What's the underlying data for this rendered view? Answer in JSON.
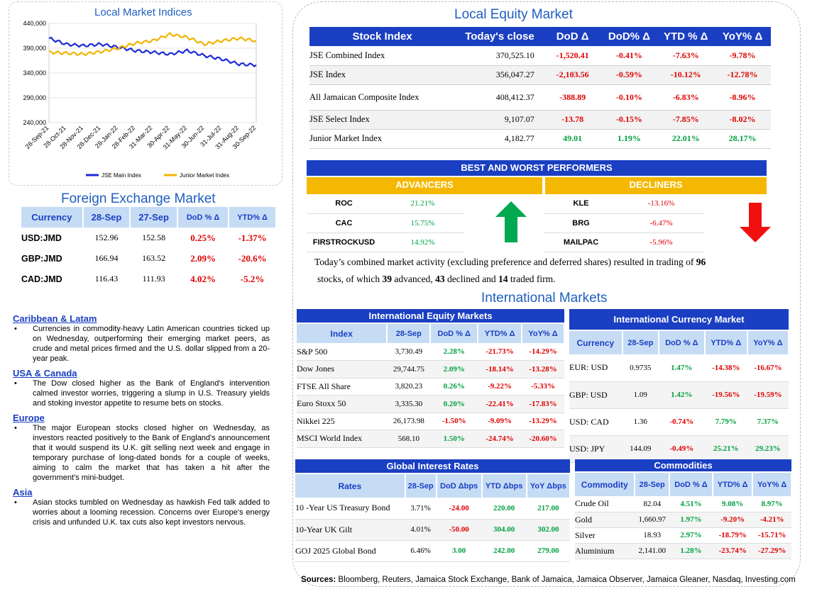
{
  "local_indices": {
    "title": "Local Market Indices",
    "y_ticks": [
      "440,000",
      "390,000",
      "340,000",
      "290,000",
      "240,000"
    ],
    "x_ticks": [
      "28-Sep-21",
      "28-Oct-21",
      "28-Nov-21",
      "28-Dec-21",
      "28-Jan-22",
      "28-Feb-22",
      "31-Mar-22",
      "30-Apr-22",
      "31-May-22",
      "30-Jun-22",
      "31-Jul-22",
      "31-Aug-22",
      "30-Sep-22"
    ],
    "legend": [
      "JSE Main Index",
      "Junior Market Index"
    ],
    "colors": {
      "main": "#1f2bd6",
      "junior": "#f0b400"
    }
  },
  "chart_data": {
    "type": "line",
    "title": "Local Market Indices",
    "categories": [
      "28-Sep-21",
      "28-Oct-21",
      "28-Nov-21",
      "28-Dec-21",
      "28-Jan-22",
      "28-Feb-22",
      "31-Mar-22",
      "30-Apr-22",
      "31-May-22",
      "30-Jun-22",
      "31-Jul-22",
      "31-Aug-22",
      "30-Sep-22"
    ],
    "series": [
      {
        "name": "JSE Main Index",
        "values": [
          410000,
          398000,
          395000,
          398000,
          392000,
          385000,
          382000,
          378000,
          385000,
          375000,
          368000,
          358000,
          356000
        ]
      },
      {
        "name": "Junior Market Index",
        "values": [
          382000,
          380000,
          378000,
          383000,
          390000,
          400000,
          405000,
          418000,
          412000,
          398000,
          405000,
          410000,
          405000
        ]
      }
    ],
    "ylim": [
      240000,
      440000
    ],
    "legend_position": "bottom"
  },
  "local_equity": {
    "title": "Local Equity Market",
    "headers": [
      "Stock Index",
      "Today's close",
      "DoD  Δ",
      "DoD% Δ",
      "YTD % Δ",
      "YoY% Δ"
    ],
    "rows": [
      [
        "JSE Combined Index",
        "370,525.10",
        "-1,520.41",
        "-0.41%",
        "-7.63%",
        "-9.78%"
      ],
      [
        "JSE Index",
        "356,047.27",
        "-2,103.56",
        "-0.59%",
        "-10.12%",
        "-12.78%"
      ],
      [
        "All Jamaican Composite Index",
        "408,412.37",
        "-388.89",
        "-0.10%",
        "-6.83%",
        "-8.96%"
      ],
      [
        "JSE Select Index",
        "9,107.07",
        "-13.78",
        "-0.15%",
        "-7.85%",
        "-8.02%"
      ],
      [
        "Junior Market Index",
        "4,182.77",
        "49.01",
        "1.19%",
        "22.01%",
        "28.17%"
      ]
    ]
  },
  "performers": {
    "title": "BEST AND WORST PERFORMERS",
    "advancers_label": "ADVANCERS",
    "decliners_label": "DECLINERS",
    "advancers": [
      [
        "ROC",
        "21.21%"
      ],
      [
        "CAC",
        "15.75%"
      ],
      [
        "FIRSTROCKUSD",
        "14.92%"
      ]
    ],
    "decliners": [
      [
        "KLE",
        "-13.16%"
      ],
      [
        "BRG",
        "-6.47%"
      ],
      [
        "MAILPAC",
        "-5.96%"
      ]
    ]
  },
  "summary": {
    "p1": "Today’s combined market activity (excluding preference and deferred shares) resulted in trading of ",
    "n1": "96",
    "p2": "stocks, of which ",
    "n2": "39",
    "p3": " advanced, ",
    "n3": "43",
    "p4": " declined and ",
    "n4": "14",
    "p5": " traded firm."
  },
  "fx": {
    "title": "Foreign Exchange Market",
    "headers": [
      "Currency",
      "28-Sep",
      "27-Sep",
      "DoD % Δ",
      "YTD% Δ"
    ],
    "rows": [
      [
        "USD:JMD",
        "152.96",
        "152.58",
        "0.25%",
        "-1.37%"
      ],
      [
        "GBP:JMD",
        "166.94",
        "163.52",
        "2.09%",
        "-20.6%"
      ],
      [
        "CAD:JMD",
        "116.43",
        "111.93",
        "4.02%",
        "-5.2%"
      ]
    ]
  },
  "news": [
    {
      "title": "Caribbean & Latam",
      "text": "Currencies in commodity-heavy Latin American countries ticked up on Wednesday, outperforming their emerging market peers, as crude and metal prices firmed and the U.S. dollar slipped from a 20-year peak."
    },
    {
      "title": "USA & Canada",
      "text": "The Dow closed higher as the Bank of England's intervention calmed investor worries, triggering a slump in U.S. Treasury yields and stoking investor appetite to resume bets on stocks."
    },
    {
      "title": "Europe",
      "text": "The major European stocks closed higher on Wednesday, as investors reacted positively to the Bank of England's announcement that it would suspend its U.K. gilt selling next week and engage in temporary purchase of long-dated bonds for a couple of weeks, aiming to calm the market that has taken a hit after the government's mini-budget."
    },
    {
      "title": "Asia",
      "text": "Asian stocks tumbled on Wednesday as hawkish Fed talk added to worries about a looming recession. Concerns over Europe's energy crisis and unfunded U.K. tax cuts also kept investors nervous."
    }
  ],
  "intl": {
    "title": "International Markets",
    "equity": {
      "title": "International Equity Markets",
      "headers": [
        "Index",
        "28-Sep",
        "DoD % Δ",
        "YTD% Δ",
        "YoY% Δ"
      ],
      "rows": [
        [
          "S&P 500",
          "3,730.49",
          "2.28%",
          "-21.73%",
          "-14.29%"
        ],
        [
          "Dow Jones",
          "29,744.75",
          "2.09%",
          "-18.14%",
          "-13.28%"
        ],
        [
          "FTSE All Share",
          "3,820.23",
          "0.26%",
          "-9.22%",
          "-5.33%"
        ],
        [
          "Euro Stoxx 50",
          "3,335.30",
          "0.20%",
          "-22.41%",
          "-17.83%"
        ],
        [
          "Nikkei 225",
          "26,173.98",
          "-1.50%",
          "-9.09%",
          "-13.29%"
        ],
        [
          "MSCI World Index",
          "568.10",
          "1.50%",
          "-24.74%",
          "-20.60%"
        ]
      ]
    },
    "currency": {
      "title": "International Currency Market",
      "headers": [
        "Currency",
        "28-Sep",
        "DoD % Δ",
        "YTD% Δ",
        "YoY% Δ"
      ],
      "rows": [
        [
          "EUR: USD",
          "0.9735",
          "1.47%",
          "-14.38%",
          "-16.67%"
        ],
        [
          "GBP: USD",
          "1.09",
          "1.42%",
          "-19.56%",
          "-19.59%"
        ],
        [
          "USD: CAD",
          "1.36",
          "-0.74%",
          "7.79%",
          "7.37%"
        ],
        [
          "USD: JPY",
          "144.09",
          "-0.49%",
          "25.21%",
          "29.23%"
        ]
      ]
    },
    "rates": {
      "title": "Global Interest Rates",
      "headers": [
        "Rates",
        "28-Sep",
        "DoD Δbps",
        "YTD Δbps",
        "YoY Δbps"
      ],
      "rows": [
        [
          "10 -Year US Treasury Bond",
          "3.71%",
          "-24.00",
          "220.00",
          "217.00"
        ],
        [
          "10-Year UK Gilt",
          "4.01%",
          "-50.00",
          "304.00",
          "302.00"
        ],
        [
          "GOJ 2025 Global Bond",
          "6.46%",
          "3.00",
          "242.00",
          "279.00"
        ]
      ]
    },
    "commodities": {
      "title": "Commodities",
      "headers": [
        "Commodity",
        "28-Sep",
        "DoD % Δ",
        "YTD% Δ",
        "YoY% Δ"
      ],
      "rows": [
        [
          "Crude Oil",
          "82.04",
          "4.51%",
          "9.08%",
          "8.97%"
        ],
        [
          "Gold",
          "1,660.97",
          "1.97%",
          "-9.20%",
          "-4.21%"
        ],
        [
          "Silver",
          "18.93",
          "2.97%",
          "-18.79%",
          "-15.71%"
        ],
        [
          "Aluminium",
          "2,141.00",
          "1.28%",
          "-23.74%",
          "-27.29%"
        ]
      ]
    }
  },
  "sources": {
    "label": "Sources:",
    "text": " Bloomberg, Reuters, Jamaica Stock Exchange, Bank of Jamaica, Jamaica Observer, Jamaica Gleaner, Nasdaq, Investing.com"
  }
}
